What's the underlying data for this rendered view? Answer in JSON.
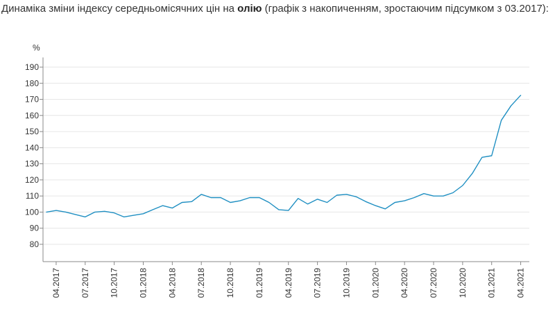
{
  "header": {
    "title_prefix": "Динаміка зміни індексу середньомісячних цін на ",
    "title_bold": "олію",
    "title_suffix": " (графік з накопиченням, зростаючим підсумком з 03.2017):"
  },
  "chart_data": {
    "type": "line",
    "title": "Динаміка зміни індексу середньомісячних цін на олію (графік з накопиченням, зростаючим підсумком з 03.2017):",
    "ylabel": "%",
    "xlabel": "",
    "ylim": [
      70,
      195
    ],
    "yticks": [
      80,
      90,
      100,
      110,
      120,
      130,
      140,
      150,
      160,
      170,
      180,
      190
    ],
    "grid": true,
    "legend": "none",
    "line_color": "#1f8fc2",
    "xtick_labels": [
      "04.2017",
      "07.2017",
      "10.2017",
      "01.2018",
      "04.2018",
      "07.2018",
      "10.2018",
      "01.2019",
      "04.2019",
      "07.2019",
      "10.2019",
      "01.2020",
      "04.2020",
      "07.2020",
      "10.2020",
      "01.2021",
      "04.2021"
    ],
    "x": [
      "03.2017",
      "04.2017",
      "05.2017",
      "06.2017",
      "07.2017",
      "08.2017",
      "09.2017",
      "10.2017",
      "11.2017",
      "12.2017",
      "01.2018",
      "02.2018",
      "03.2018",
      "04.2018",
      "05.2018",
      "06.2018",
      "07.2018",
      "08.2018",
      "09.2018",
      "10.2018",
      "11.2018",
      "12.2018",
      "01.2019",
      "02.2019",
      "03.2019",
      "04.2019",
      "05.2019",
      "06.2019",
      "07.2019",
      "08.2019",
      "09.2019",
      "10.2019",
      "11.2019",
      "12.2019",
      "01.2020",
      "02.2020",
      "03.2020",
      "04.2020",
      "05.2020",
      "06.2020",
      "07.2020",
      "08.2020",
      "09.2020",
      "10.2020",
      "11.2020",
      "12.2020",
      "01.2021",
      "02.2021",
      "03.2021",
      "04.2021"
    ],
    "series": [
      {
        "values": [
          100.0,
          101.0,
          100.0,
          98.5,
          97.0,
          100.0,
          100.5,
          99.5,
          97.0,
          98.0,
          99.0,
          101.5,
          104.0,
          102.5,
          106.0,
          106.5,
          111.0,
          109.0,
          109.0,
          106.0,
          107.0,
          109.0,
          109.0,
          106.0,
          101.5,
          101.0,
          108.5,
          105.0,
          108.0,
          106.0,
          110.5,
          111.0,
          109.5,
          106.5,
          104.0,
          102.0,
          106.0,
          107.0,
          109.0,
          111.5,
          110.0,
          110.0,
          112.0,
          116.5,
          124.0,
          134.0,
          135.0,
          157.0,
          166.0,
          172.5
        ]
      }
    ]
  }
}
